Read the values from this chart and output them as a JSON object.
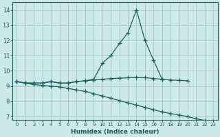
{
  "xlabel": "Humidex (Indice chaleur)",
  "bg_color": "#cce8e8",
  "grid_color": "#aacccc",
  "line_color": "#1a5f5f",
  "ylim": [
    6.8,
    14.5
  ],
  "xlim": [
    -0.5,
    23.5
  ],
  "yticks": [
    7,
    8,
    9,
    10,
    11,
    12,
    13,
    14
  ],
  "xticks": [
    0,
    1,
    2,
    3,
    4,
    5,
    6,
    7,
    8,
    9,
    10,
    11,
    12,
    13,
    14,
    15,
    16,
    17,
    18,
    19,
    20,
    21,
    22,
    23
  ],
  "peaked_x": [
    0,
    1,
    2,
    3,
    4,
    5,
    6,
    7,
    8,
    9,
    10,
    11,
    12,
    13,
    14,
    15,
    16,
    17
  ],
  "peaked_y": [
    9.3,
    9.2,
    9.2,
    9.2,
    9.3,
    9.2,
    9.2,
    9.3,
    9.35,
    9.45,
    10.5,
    11.0,
    11.8,
    12.5,
    14.0,
    12.0,
    10.7,
    9.45
  ],
  "flat_x": [
    0,
    1,
    2,
    3,
    4,
    5,
    6,
    7,
    8,
    9,
    10,
    11,
    12,
    13,
    14,
    15,
    16,
    17,
    18,
    19,
    20
  ],
  "flat_y": [
    9.3,
    9.2,
    9.2,
    9.2,
    9.3,
    9.2,
    9.2,
    9.3,
    9.35,
    9.4,
    9.45,
    9.5,
    9.52,
    9.55,
    9.57,
    9.55,
    9.5,
    9.45,
    9.4,
    9.38,
    9.35
  ],
  "decline_x": [
    0,
    1,
    2,
    3,
    4,
    5,
    6,
    7,
    8,
    9,
    10,
    11,
    12,
    13,
    14,
    15,
    16,
    17,
    18,
    19,
    20,
    21,
    22,
    23
  ],
  "decline_y": [
    9.3,
    9.2,
    9.1,
    9.05,
    9.0,
    8.95,
    8.85,
    8.75,
    8.65,
    8.5,
    8.35,
    8.2,
    8.05,
    7.9,
    7.75,
    7.6,
    7.45,
    7.3,
    7.2,
    7.1,
    7.0,
    6.85,
    6.75,
    6.7
  ]
}
